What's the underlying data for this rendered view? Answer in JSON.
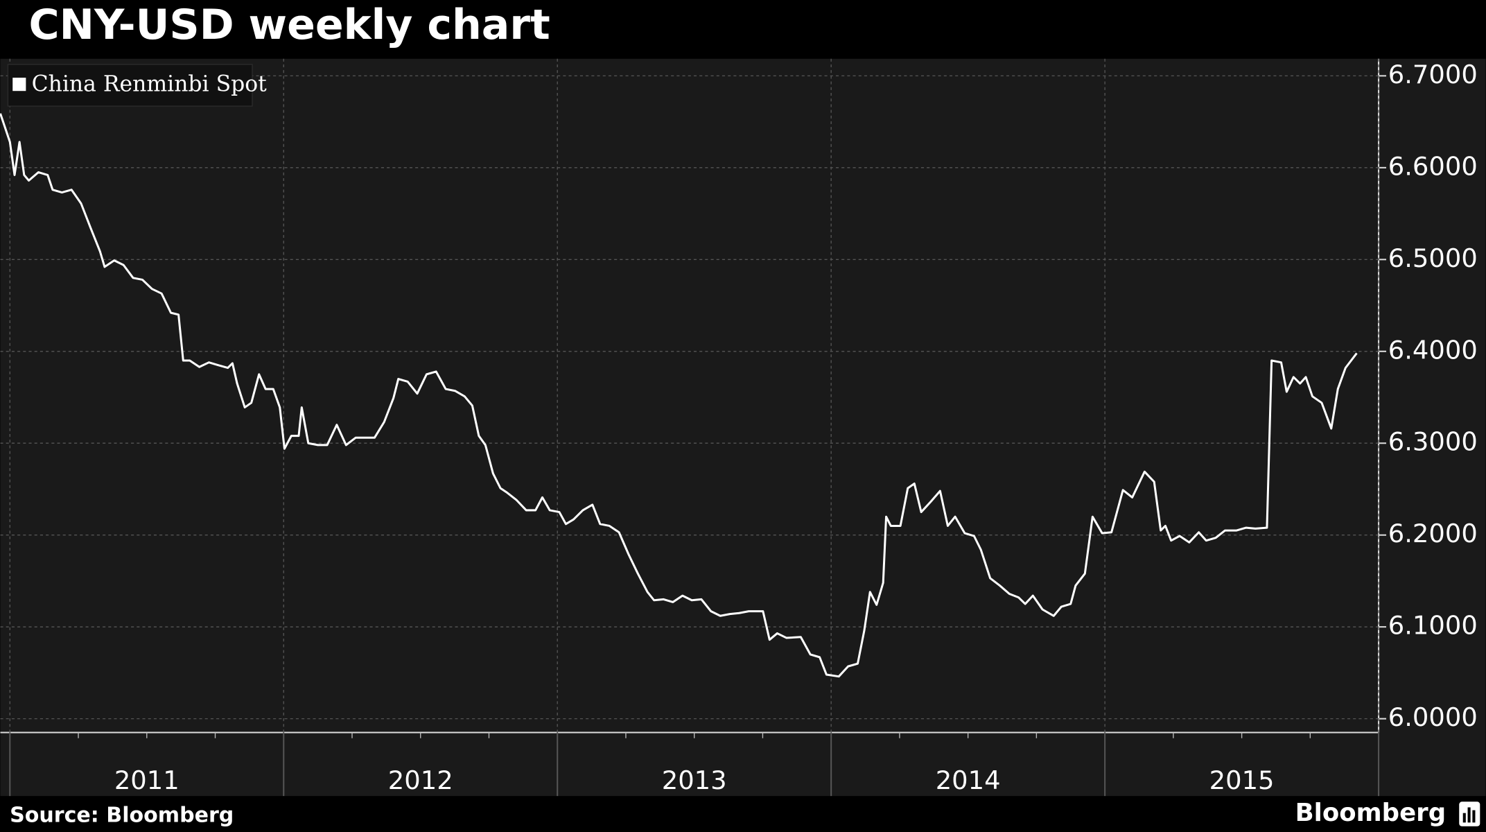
{
  "chart_data": {
    "type": "line",
    "title": "CNY-USD weekly chart",
    "source": "Source: Bloomberg",
    "brand": "Bloomberg",
    "series": [
      {
        "name": "China Renminbi Spot",
        "color": "#ffffff",
        "x": [
          2010.965,
          2011.0,
          2011.017,
          2011.035,
          2011.052,
          2011.069,
          2011.104,
          2011.138,
          2011.156,
          2011.19,
          2011.225,
          2011.26,
          2011.294,
          2011.329,
          2011.346,
          2011.381,
          2011.415,
          2011.45,
          2011.484,
          2011.519,
          2011.554,
          2011.588,
          2011.616,
          2011.633,
          2011.657,
          2011.692,
          2011.727,
          2011.761,
          2011.796,
          2011.813,
          2011.83,
          2011.858,
          2011.882,
          2011.91,
          2011.934,
          2011.962,
          2011.986,
          2012.003,
          2012.028,
          2012.055,
          2012.066,
          2012.09,
          2012.125,
          2012.159,
          2012.194,
          2012.228,
          2012.263,
          2012.298,
          2012.332,
          2012.367,
          2012.401,
          2012.419,
          2012.453,
          2012.488,
          2012.522,
          2012.557,
          2012.592,
          2012.626,
          2012.661,
          2012.689,
          2012.713,
          2012.737,
          2012.765,
          2012.792,
          2012.817,
          2012.851,
          2012.886,
          2012.92,
          2012.945,
          2012.972,
          2013.007,
          2013.031,
          2013.059,
          2013.093,
          2013.128,
          2013.156,
          2013.19,
          2013.225,
          2013.26,
          2013.294,
          2013.329,
          2013.353,
          2013.388,
          2013.422,
          2013.457,
          2013.491,
          2013.526,
          2013.561,
          2013.595,
          2013.63,
          2013.664,
          2013.699,
          2013.751,
          2013.775,
          2013.803,
          2013.837,
          2013.889,
          2013.924,
          2013.958,
          2013.983,
          2014.028,
          2014.062,
          2014.097,
          2014.121,
          2014.142,
          2014.166,
          2014.19,
          2014.201,
          2014.218,
          2014.253,
          2014.28,
          2014.304,
          2014.329,
          2014.363,
          2014.398,
          2014.426,
          2014.453,
          2014.488,
          2014.522,
          2014.547,
          2014.581,
          2014.616,
          2014.651,
          2014.685,
          2014.709,
          2014.737,
          2014.772,
          2014.813,
          2014.841,
          2014.875,
          2014.893,
          2014.927,
          2014.955,
          2014.99,
          2015.024,
          2015.066,
          2015.1,
          2015.145,
          2015.18,
          2015.204,
          2015.221,
          2015.242,
          2015.273,
          2015.308,
          2015.343,
          2015.37,
          2015.405,
          2015.439,
          2015.481,
          2015.516,
          2015.55,
          2015.592,
          2015.609,
          2015.644,
          2015.664,
          2015.689,
          2015.713,
          2015.734,
          2015.758,
          2015.792,
          2015.827,
          2015.851,
          2015.879,
          2015.92
        ],
        "values": [
          6.659,
          6.628,
          6.592,
          6.628,
          6.592,
          6.586,
          6.595,
          6.592,
          6.576,
          6.573,
          6.576,
          6.561,
          6.535,
          6.509,
          6.492,
          6.499,
          6.494,
          6.48,
          6.478,
          6.468,
          6.463,
          6.442,
          6.44,
          6.39,
          6.39,
          6.383,
          6.388,
          6.385,
          6.382,
          6.387,
          6.365,
          6.339,
          6.344,
          6.375,
          6.359,
          6.359,
          6.339,
          6.294,
          6.308,
          6.308,
          6.339,
          6.3,
          6.298,
          6.298,
          6.32,
          6.298,
          6.306,
          6.306,
          6.306,
          6.323,
          6.349,
          6.37,
          6.367,
          6.354,
          6.375,
          6.378,
          6.359,
          6.357,
          6.351,
          6.341,
          6.308,
          6.298,
          6.267,
          6.251,
          6.246,
          6.238,
          6.227,
          6.227,
          6.241,
          6.227,
          6.225,
          6.212,
          6.217,
          6.227,
          6.233,
          6.212,
          6.21,
          6.203,
          6.179,
          6.158,
          6.138,
          6.129,
          6.13,
          6.127,
          6.134,
          6.129,
          6.13,
          6.117,
          6.112,
          6.114,
          6.115,
          6.117,
          6.117,
          6.086,
          6.093,
          6.088,
          6.089,
          6.07,
          6.067,
          6.048,
          6.046,
          6.057,
          6.06,
          6.096,
          6.138,
          6.124,
          6.148,
          6.22,
          6.21,
          6.21,
          6.251,
          6.256,
          6.225,
          6.236,
          6.248,
          6.21,
          6.22,
          6.202,
          6.199,
          6.184,
          6.153,
          6.145,
          6.136,
          6.132,
          6.125,
          6.134,
          6.119,
          6.112,
          6.122,
          6.125,
          6.145,
          6.158,
          6.22,
          6.202,
          6.203,
          6.249,
          6.241,
          6.269,
          6.258,
          6.205,
          6.21,
          6.194,
          6.199,
          6.192,
          6.203,
          6.194,
          6.197,
          6.205,
          6.205,
          6.208,
          6.207,
          6.208,
          6.39,
          6.388,
          6.356,
          6.372,
          6.365,
          6.372,
          6.351,
          6.344,
          6.316,
          6.359,
          6.382,
          6.398
        ]
      }
    ],
    "x_labels": [
      "2011",
      "2012",
      "2013",
      "2014",
      "2015"
    ],
    "xlim": [
      2010.965,
      2016.0
    ],
    "xticks": [
      2011,
      2012,
      2013,
      2014,
      2015,
      2016
    ],
    "ylim": [
      5.985,
      6.7186
    ],
    "yticks": [
      {
        "value": 6.0,
        "label": "6.0000"
      },
      {
        "value": 6.1,
        "label": "6.1000"
      },
      {
        "value": 6.2,
        "label": "6.2000"
      },
      {
        "value": 6.3,
        "label": "6.3000"
      },
      {
        "value": 6.4,
        "label": "6.4000"
      },
      {
        "value": 6.5,
        "label": "6.5000"
      },
      {
        "value": 6.6,
        "label": "6.6000"
      },
      {
        "value": 6.7,
        "label": "6.7000"
      }
    ],
    "grid": true,
    "legend": "top-left"
  }
}
